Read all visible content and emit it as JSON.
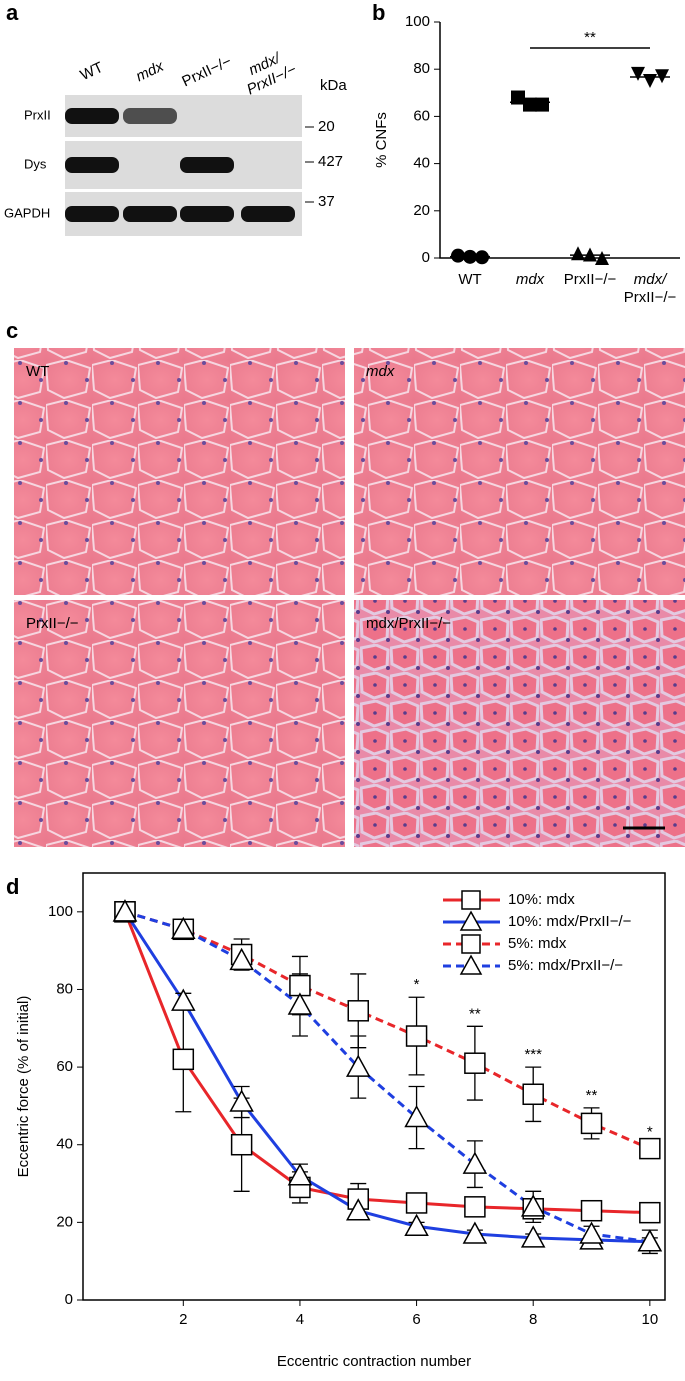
{
  "panel_labels": [
    "a",
    "b",
    "c",
    "d"
  ],
  "blot": {
    "lanes": [
      "WT",
      "mdx",
      "PrxII−/−",
      "mdx/ PrxII−/−"
    ],
    "rows": [
      "PrxII",
      "Dys",
      "GAPDH"
    ],
    "unit": "kDa",
    "markers": [
      "20",
      "427",
      "37"
    ]
  },
  "histology": {
    "labels": [
      "WT",
      "mdx",
      "PrxII−/−",
      "mdx/PrxII−/−"
    ]
  },
  "chart_data": [
    {
      "type": "dotplot",
      "y_label": "% CNFs",
      "categories": [
        "WT",
        "mdx",
        "PrxII−/−",
        "mdx/ PrxII−/−"
      ],
      "values": [
        [
          1,
          0.5,
          0.3
        ],
        [
          68,
          65,
          65
        ],
        [
          2,
          1.5,
          0
        ],
        [
          78,
          75,
          77
        ]
      ],
      "means": [
        0.6,
        66,
        1.2,
        76.7
      ],
      "markers": [
        "circle",
        "square",
        "triangle",
        "triangle-down"
      ],
      "color": "#000000",
      "ylim": [
        0,
        100
      ],
      "yticks": [
        0,
        20,
        40,
        60,
        80,
        100
      ],
      "significance": {
        "from": 1,
        "to": 3,
        "y": 89,
        "label": "**"
      }
    },
    {
      "type": "line",
      "x_label": "Eccentric contraction number",
      "y_label": "Eccentric force (% of initial)",
      "x": [
        1,
        2,
        3,
        4,
        5,
        6,
        7,
        8,
        9,
        10
      ],
      "series": [
        {
          "name": "10%: mdx",
          "color": "#e8262a",
          "dashed": false,
          "marker": "square",
          "values": [
            100,
            62,
            40,
            29,
            26,
            25,
            24,
            23.5,
            23,
            22.5
          ],
          "errors": [
            0,
            13.5,
            12,
            4,
            4,
            2,
            2,
            2,
            1,
            1
          ]
        },
        {
          "name": "10%: mdx/PrxII−/−",
          "color": "#1f3fe0",
          "dashed": false,
          "marker": "triangle",
          "values": [
            100,
            77,
            51,
            32,
            23,
            19,
            17,
            16,
            15.5,
            15
          ],
          "errors": [
            0,
            2,
            4,
            3,
            1,
            1,
            1,
            1,
            1,
            1
          ]
        },
        {
          "name": "5%: mdx",
          "color": "#e8262a",
          "dashed": true,
          "marker": "square",
          "values": [
            100,
            95.5,
            89,
            81,
            74.5,
            68,
            61,
            53,
            45.5,
            39
          ],
          "errors": [
            0,
            1,
            4,
            7.5,
            9.5,
            10,
            9.5,
            7,
            4,
            1
          ]
        },
        {
          "name": "5%: mdx/PrxII−/−",
          "color": "#1f3fe0",
          "dashed": true,
          "marker": "triangle",
          "values": [
            100,
            95.5,
            87.5,
            76,
            60,
            47,
            35,
            24,
            17,
            15
          ],
          "errors": [
            0,
            1,
            2,
            8,
            8,
            8,
            6,
            4,
            2,
            3
          ]
        }
      ],
      "annotations": [
        {
          "x": 6,
          "text": "*"
        },
        {
          "x": 7,
          "text": "**"
        },
        {
          "x": 8,
          "text": "***"
        },
        {
          "x": 9,
          "text": "**"
        },
        {
          "x": 10,
          "text": "*"
        }
      ],
      "xlim": [
        0.28,
        10.26
      ],
      "xticks": [
        2,
        4,
        6,
        8,
        10
      ],
      "ylim": [
        0,
        110
      ],
      "yticks": [
        0,
        20,
        40,
        60,
        80,
        100
      ]
    }
  ]
}
